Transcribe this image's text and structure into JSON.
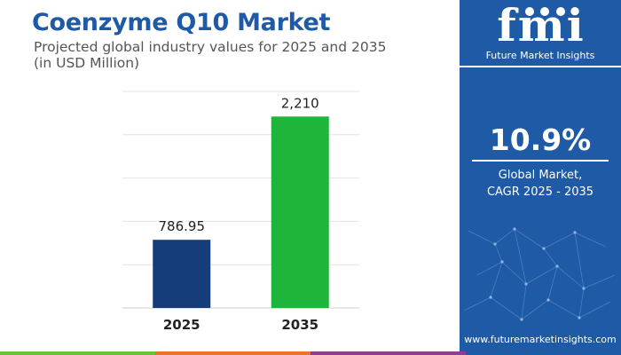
{
  "header": {
    "title": "Coenzyme Q10 Market",
    "subtitle_line1": "Projected global industry values for 2025 and 2035",
    "subtitle_line2": "(in USD Million)"
  },
  "chart_data": {
    "type": "bar",
    "categories": [
      "2025",
      "2035"
    ],
    "values": [
      786.95,
      2210
    ],
    "value_labels": [
      "786.95",
      "2,210"
    ],
    "ylim": [
      0,
      2500
    ],
    "grid": true,
    "bar_colors": [
      "#143d7a",
      "#1fb53a"
    ]
  },
  "side_panel": {
    "logo_text": "fmi",
    "logo_tagline": "Future Market Insights",
    "cagr_value": "10.9%",
    "cagr_label_line1": "Global Market,",
    "cagr_label_line2": "CAGR 2025 - 2035",
    "website": "www.futuremarketinsights.com",
    "background_color": "#1f5aa6"
  },
  "bottom_strip_colors": [
    "#6bbf3b",
    "#e8752a",
    "#8a3f95",
    "#1f5aa6"
  ]
}
